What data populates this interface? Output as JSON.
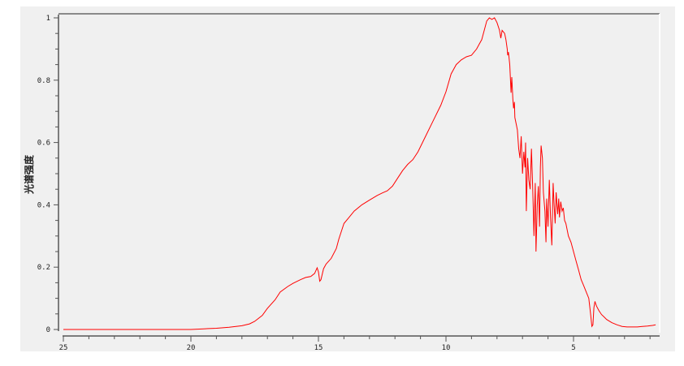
{
  "chart_data": {
    "type": "line",
    "title": "",
    "xlabel": "",
    "ylabel": "光谱强度",
    "xlim": [
      25,
      1.7
    ],
    "x_reversed": true,
    "ylim": [
      0,
      1
    ],
    "grid": false,
    "x_ticks": [
      25,
      20,
      15,
      10,
      5
    ],
    "x_tick_labels": [
      "25",
      "20",
      "15",
      "10",
      "5"
    ],
    "y_ticks": [
      0,
      0.2,
      0.4,
      0.6,
      0.8,
      1
    ],
    "y_tick_labels": [
      "0",
      "0.2",
      "0.4",
      "0.6",
      "0.8",
      "1"
    ],
    "colors": {
      "series": "#ff0000",
      "background": "#f0f0f0",
      "axis": "#555555"
    },
    "series": [
      {
        "x": [
          25,
          22,
          20,
          19.5,
          19,
          18.5,
          18,
          17.7,
          17.5,
          17.2,
          17,
          16.7,
          16.5,
          16.2,
          16,
          15.7,
          15.5,
          15.3,
          15.15,
          15.05,
          15.0,
          14.95,
          14.9,
          14.8,
          14.7,
          14.5,
          14.3,
          14.2,
          14.0,
          13.8,
          13.6,
          13.3,
          13,
          12.7,
          12.5,
          12.3,
          12.1,
          11.9,
          11.7,
          11.5,
          11.3,
          11.1,
          10.8,
          10.5,
          10.2,
          10.0,
          9.8,
          9.6,
          9.4,
          9.2,
          9.0,
          8.8,
          8.7,
          8.6,
          8.5,
          8.4,
          8.3,
          8.2,
          8.1,
          8.0,
          7.9,
          7.85,
          7.8,
          7.7,
          7.65,
          7.6,
          7.58,
          7.55,
          7.5,
          7.47,
          7.45,
          7.42,
          7.38,
          7.35,
          7.32,
          7.3,
          7.25,
          7.2,
          7.15,
          7.1,
          7.05,
          7.0,
          6.95,
          6.9,
          6.88,
          6.85,
          6.8,
          6.75,
          6.7,
          6.65,
          6.6,
          6.55,
          6.5,
          6.47,
          6.42,
          6.38,
          6.33,
          6.3,
          6.27,
          6.22,
          6.18,
          6.12,
          6.08,
          6.05,
          6.0,
          5.95,
          5.9,
          5.85,
          5.8,
          5.76,
          5.72,
          5.68,
          5.62,
          5.58,
          5.55,
          5.5,
          5.45,
          5.4,
          5.35,
          5.3,
          5.2,
          5.1,
          5.0,
          4.9,
          4.8,
          4.7,
          4.6,
          4.5,
          4.4,
          4.33,
          4.28,
          4.24,
          4.2,
          4.16,
          4.14,
          4.1,
          4.0,
          3.9,
          3.8,
          3.7,
          3.5,
          3.3,
          3.1,
          2.9,
          2.7,
          2.5,
          2.3,
          2.1,
          1.9,
          1.78
        ],
        "y": [
          0,
          0,
          0,
          0.002,
          0.004,
          0.007,
          0.012,
          0.018,
          0.026,
          0.045,
          0.068,
          0.095,
          0.12,
          0.138,
          0.148,
          0.16,
          0.167,
          0.17,
          0.18,
          0.198,
          0.185,
          0.155,
          0.16,
          0.195,
          0.21,
          0.228,
          0.26,
          0.29,
          0.34,
          0.36,
          0.38,
          0.4,
          0.415,
          0.43,
          0.438,
          0.445,
          0.46,
          0.485,
          0.51,
          0.53,
          0.545,
          0.57,
          0.62,
          0.67,
          0.72,
          0.763,
          0.82,
          0.85,
          0.865,
          0.875,
          0.88,
          0.9,
          0.915,
          0.93,
          0.96,
          0.99,
          1.0,
          0.995,
          1.0,
          0.985,
          0.96,
          0.935,
          0.96,
          0.95,
          0.93,
          0.9,
          0.88,
          0.89,
          0.85,
          0.8,
          0.76,
          0.81,
          0.74,
          0.71,
          0.73,
          0.68,
          0.66,
          0.64,
          0.58,
          0.55,
          0.62,
          0.5,
          0.57,
          0.52,
          0.6,
          0.38,
          0.55,
          0.48,
          0.45,
          0.58,
          0.45,
          0.3,
          0.47,
          0.25,
          0.4,
          0.46,
          0.33,
          0.52,
          0.59,
          0.55,
          0.44,
          0.38,
          0.28,
          0.42,
          0.33,
          0.48,
          0.36,
          0.27,
          0.47,
          0.4,
          0.34,
          0.44,
          0.37,
          0.42,
          0.36,
          0.41,
          0.38,
          0.39,
          0.35,
          0.34,
          0.3,
          0.28,
          0.25,
          0.22,
          0.19,
          0.16,
          0.14,
          0.12,
          0.1,
          0.05,
          0.01,
          0.015,
          0.07,
          0.09,
          0.085,
          0.075,
          0.06,
          0.048,
          0.04,
          0.032,
          0.022,
          0.015,
          0.01,
          0.008,
          0.008,
          0.008,
          0.01,
          0.011,
          0.013,
          0.015
        ]
      }
    ]
  }
}
